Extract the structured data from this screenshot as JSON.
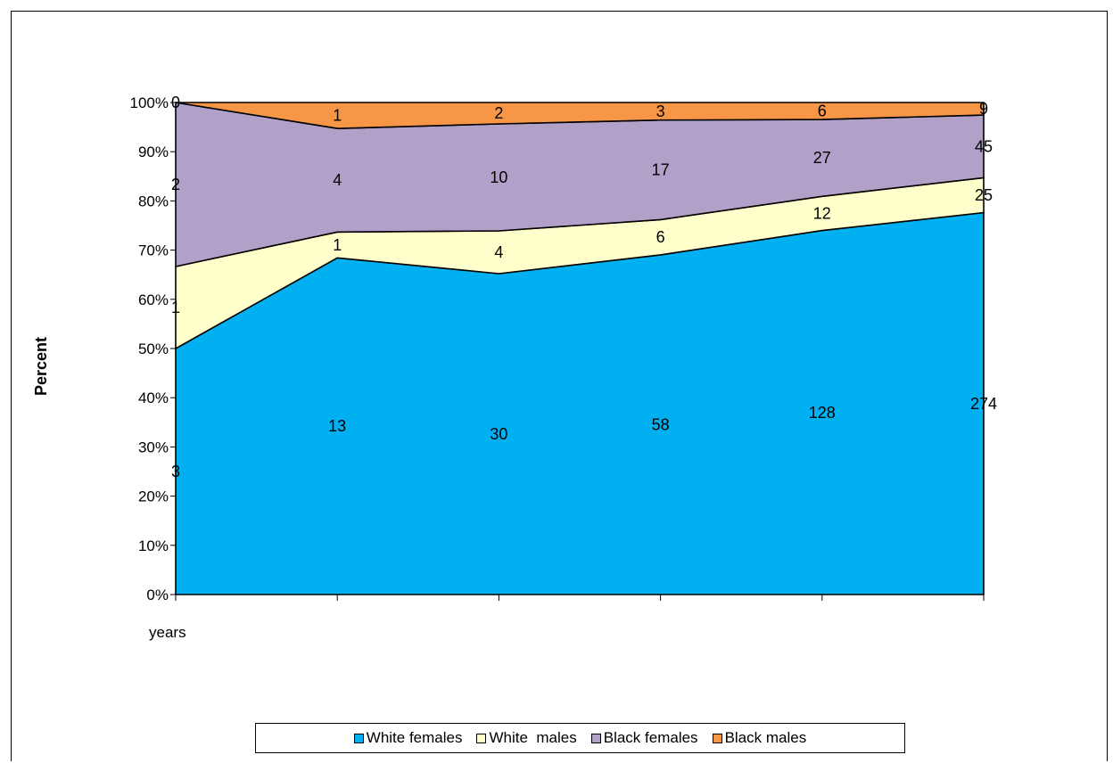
{
  "chart_data": {
    "type": "area",
    "stacked": "percent",
    "title": "",
    "xlabel": "",
    "ylabel": "Percent",
    "categories": [
      "years",
      "",
      "",
      "",
      "",
      ""
    ],
    "yticks": [
      "0%",
      "10%",
      "20%",
      "30%",
      "40%",
      "50%",
      "60%",
      "70%",
      "80%",
      "90%",
      "100%"
    ],
    "ylim": [
      0,
      100
    ],
    "grid": false,
    "legend_position": "bottom",
    "series": [
      {
        "name": "White females",
        "values": [
          3,
          13,
          30,
          58,
          128,
          274
        ],
        "color": "#00b0f0"
      },
      {
        "name": "White  males",
        "values": [
          1,
          1,
          4,
          6,
          12,
          25
        ],
        "color": "#ffffcc"
      },
      {
        "name": "Black females",
        "values": [
          2,
          4,
          10,
          17,
          27,
          45
        ],
        "color": "#b1a0c7"
      },
      {
        "name": "Black males",
        "values": [
          0,
          1,
          2,
          3,
          6,
          9
        ],
        "color": "#f79646"
      }
    ]
  }
}
